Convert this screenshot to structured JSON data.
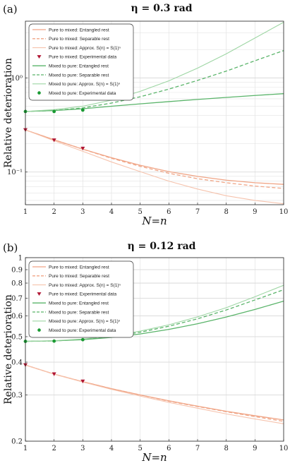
{
  "colors": {
    "orange": "#f0a586",
    "orange_light": "#f6c3ad",
    "green": "#5ab46a",
    "green_light": "#9ed6a4",
    "red_marker": "#b01634",
    "green_marker": "#1a9a33",
    "grid": "#e3e3e3"
  },
  "chart_data": [
    {
      "type": "line",
      "panel_label": "(a)",
      "title": "η = 0.3 rad",
      "xlabel": "N=n",
      "ylabel": "Relative deterioration",
      "yscale": "log",
      "xlim": [
        1,
        10
      ],
      "ylim": [
        0.045,
        4
      ],
      "xticks": [
        1,
        2,
        3,
        4,
        5,
        6,
        7,
        8,
        9,
        10
      ],
      "yticks": [
        {
          "value": 0.1,
          "label": "10⁻¹"
        },
        {
          "value": 1,
          "label": "10⁰"
        }
      ],
      "grid": true,
      "legend_position": "top-left",
      "series": [
        {
          "name": "Pure to mixed: Entangled rest",
          "style": "orange_solid",
          "x": [
            1,
            2,
            3,
            4,
            5,
            6,
            7,
            8,
            9,
            10
          ],
          "y": [
            0.28,
            0.22,
            0.175,
            0.142,
            0.118,
            0.101,
            0.09,
            0.082,
            0.077,
            0.074
          ]
        },
        {
          "name": "Pure to mixed: Separable rest",
          "style": "orange_dashed",
          "x": [
            1,
            2,
            3,
            4,
            5,
            6,
            7,
            8,
            9,
            10
          ],
          "y": [
            0.28,
            0.22,
            0.175,
            0.14,
            0.115,
            0.097,
            0.085,
            0.077,
            0.071,
            0.067
          ]
        },
        {
          "name": "Pure to mixed: Approx. S(n) = S(1)ⁿ",
          "style": "orange_light",
          "x": [
            1,
            2,
            3,
            4,
            5,
            6,
            7,
            8,
            9,
            10
          ],
          "y": [
            0.28,
            0.215,
            0.166,
            0.128,
            0.101,
            0.08,
            0.066,
            0.056,
            0.05,
            0.046
          ]
        },
        {
          "name": "Pure to mixed: Experimental data",
          "style": "red_triangle",
          "x": [
            1,
            2,
            3
          ],
          "y": [
            0.28,
            0.218,
            0.178
          ]
        },
        {
          "name": "Mixed to pure: Entangled rest",
          "style": "green_solid",
          "x": [
            1,
            2,
            3,
            4,
            5,
            6,
            7,
            8,
            9,
            10
          ],
          "y": [
            0.44,
            0.45,
            0.47,
            0.5,
            0.53,
            0.56,
            0.59,
            0.62,
            0.65,
            0.68
          ]
        },
        {
          "name": "Mixed to pure: Separable rest",
          "style": "green_dashed",
          "x": [
            1,
            2,
            3,
            4,
            5,
            6,
            7,
            8,
            9,
            10
          ],
          "y": [
            0.44,
            0.45,
            0.48,
            0.54,
            0.63,
            0.76,
            0.94,
            1.18,
            1.52,
            1.95
          ]
        },
        {
          "name": "Mixed to pure: Approx. S(n) = S(1)ⁿ",
          "style": "green_light",
          "x": [
            1,
            2,
            3,
            4,
            5,
            6,
            7,
            8,
            9,
            10
          ],
          "y": [
            0.44,
            0.46,
            0.5,
            0.58,
            0.72,
            0.93,
            1.27,
            1.8,
            2.65,
            3.9
          ]
        },
        {
          "name": "Mixed to pure: Experimental data",
          "style": "green_circle",
          "x": [
            1,
            2,
            3
          ],
          "y": [
            0.44,
            0.44,
            0.455
          ]
        }
      ]
    },
    {
      "type": "line",
      "panel_label": "(b)",
      "title": "η = 0.12 rad",
      "xlabel": "N=n",
      "ylabel": "Relative deterioration",
      "yscale": "log",
      "xlim": [
        1,
        10
      ],
      "ylim": [
        0.2,
        1
      ],
      "xticks": [
        1,
        2,
        3,
        4,
        5,
        6,
        7,
        8,
        9,
        10
      ],
      "yticks": [
        {
          "value": 0.2,
          "label": "0.2"
        },
        {
          "value": 0.3,
          "label": "0.3"
        },
        {
          "value": 0.4,
          "label": "0.4"
        },
        {
          "value": 0.5,
          "label": "0.5"
        },
        {
          "value": 0.6,
          "label": "0.6"
        },
        {
          "value": 0.7,
          "label": "0.7"
        },
        {
          "value": 0.8,
          "label": "0.8"
        },
        {
          "value": 0.9,
          "label": "0.9"
        },
        {
          "value": 1,
          "label": "1"
        }
      ],
      "grid": true,
      "legend_position": "top-left",
      "series": [
        {
          "name": "Pure to mixed: Entangled rest",
          "style": "orange_solid",
          "x": [
            1,
            2,
            3,
            4,
            5,
            6,
            7,
            8,
            9,
            10
          ],
          "y": [
            0.39,
            0.36,
            0.337,
            0.317,
            0.3,
            0.285,
            0.272,
            0.26,
            0.25,
            0.241
          ]
        },
        {
          "name": "Pure to mixed: Separable rest",
          "style": "orange_dashed",
          "x": [
            1,
            2,
            3,
            4,
            5,
            6,
            7,
            8,
            9,
            10
          ],
          "y": [
            0.39,
            0.36,
            0.337,
            0.317,
            0.3,
            0.284,
            0.271,
            0.259,
            0.248,
            0.238
          ]
        },
        {
          "name": "Pure to mixed: Approx. S(n) = S(1)ⁿ",
          "style": "orange_light",
          "x": [
            1,
            2,
            3,
            4,
            5,
            6,
            7,
            8,
            9,
            10
          ],
          "y": [
            0.39,
            0.36,
            0.336,
            0.315,
            0.297,
            0.281,
            0.267,
            0.254,
            0.243,
            0.233
          ]
        },
        {
          "name": "Pure to mixed: Experimental data",
          "style": "red_triangle",
          "x": [
            1,
            2,
            3
          ],
          "y": [
            0.39,
            0.36,
            0.338
          ]
        },
        {
          "name": "Mixed to pure: Entangled rest",
          "style": "green_solid",
          "x": [
            1,
            2,
            3,
            4,
            5,
            6,
            7,
            8,
            9,
            10
          ],
          "y": [
            0.48,
            0.482,
            0.487,
            0.497,
            0.512,
            0.533,
            0.56,
            0.594,
            0.635,
            0.683
          ]
        },
        {
          "name": "Mixed to pure: Separable rest",
          "style": "green_dashed",
          "x": [
            1,
            2,
            3,
            4,
            5,
            6,
            7,
            8,
            9,
            10
          ],
          "y": [
            0.48,
            0.482,
            0.488,
            0.5,
            0.52,
            0.548,
            0.585,
            0.632,
            0.69,
            0.755
          ]
        },
        {
          "name": "Mixed to pure: Approx. S(n) = S(1)ⁿ",
          "style": "green_light",
          "x": [
            1,
            2,
            3,
            4,
            5,
            6,
            7,
            8,
            9,
            10
          ],
          "y": [
            0.48,
            0.483,
            0.49,
            0.503,
            0.525,
            0.555,
            0.595,
            0.645,
            0.71,
            0.785
          ]
        },
        {
          "name": "Mixed to pure: Experimental data",
          "style": "green_circle",
          "x": [
            1,
            2,
            3
          ],
          "y": [
            0.48,
            0.481,
            0.487
          ]
        }
      ]
    }
  ]
}
